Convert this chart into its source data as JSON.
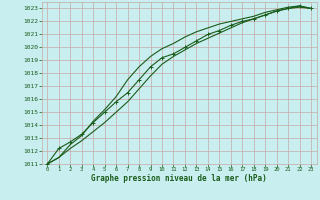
{
  "title": "Graphe pression niveau de la mer (hPa)",
  "bg_color": "#c8eef0",
  "grid_color": "#c8a8a8",
  "line_color": "#1a5c1a",
  "xlim": [
    -0.5,
    23.5
  ],
  "ylim": [
    1011,
    1023.5
  ],
  "xticks": [
    0,
    1,
    2,
    3,
    4,
    5,
    6,
    7,
    8,
    9,
    10,
    11,
    12,
    13,
    14,
    15,
    16,
    17,
    18,
    19,
    20,
    21,
    22,
    23
  ],
  "yticks": [
    1011,
    1012,
    1013,
    1014,
    1015,
    1016,
    1017,
    1018,
    1019,
    1020,
    1021,
    1022,
    1023
  ],
  "line1_x": [
    0,
    1,
    2,
    3,
    4,
    5,
    6,
    7,
    8,
    9,
    10,
    11,
    12,
    13,
    14,
    15,
    16,
    17,
    18,
    19,
    20,
    21,
    22,
    23
  ],
  "line1_y": [
    1011.0,
    1012.2,
    1012.7,
    1013.3,
    1014.2,
    1015.0,
    1015.8,
    1016.5,
    1017.5,
    1018.5,
    1019.2,
    1019.5,
    1020.0,
    1020.5,
    1021.0,
    1021.3,
    1021.7,
    1022.0,
    1022.2,
    1022.5,
    1022.8,
    1023.0,
    1023.2,
    1023.0
  ],
  "line2_x": [
    0,
    1,
    2,
    3,
    4,
    5,
    6,
    7,
    8,
    9,
    10,
    11,
    12,
    13,
    14,
    15,
    16,
    17,
    18,
    19,
    20,
    21,
    22,
    23
  ],
  "line2_y": [
    1011.0,
    1011.5,
    1012.5,
    1013.2,
    1014.3,
    1015.2,
    1016.2,
    1017.5,
    1018.5,
    1019.3,
    1019.9,
    1020.3,
    1020.8,
    1021.2,
    1021.5,
    1021.8,
    1022.0,
    1022.2,
    1022.4,
    1022.7,
    1022.9,
    1023.1,
    1023.2,
    1023.0
  ],
  "line3_x": [
    0,
    1,
    2,
    3,
    4,
    5,
    6,
    7,
    8,
    9,
    10,
    11,
    12,
    13,
    14,
    15,
    16,
    17,
    18,
    19,
    20,
    21,
    22,
    23
  ],
  "line3_y": [
    1011.0,
    1011.5,
    1012.2,
    1012.8,
    1013.5,
    1014.2,
    1015.0,
    1015.8,
    1016.8,
    1017.8,
    1018.7,
    1019.3,
    1019.8,
    1020.3,
    1020.7,
    1021.1,
    1021.5,
    1021.9,
    1022.2,
    1022.5,
    1022.8,
    1023.0,
    1023.1,
    1023.0
  ]
}
